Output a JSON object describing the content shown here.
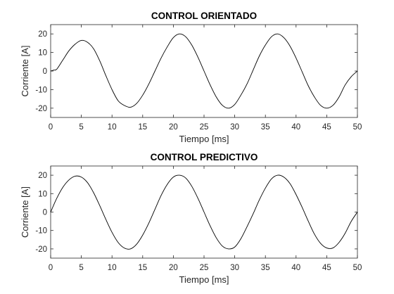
{
  "chart_data": [
    {
      "type": "line",
      "title": "CONTROL ORIENTADO",
      "xlabel": "Tiempo [ms]",
      "ylabel": "Corriente [A]",
      "xlim": [
        0,
        50
      ],
      "ylim": [
        -25,
        25
      ],
      "xticks": [
        0,
        5,
        10,
        15,
        20,
        25,
        30,
        35,
        40,
        45,
        50
      ],
      "yticks": [
        -20,
        -10,
        0,
        10,
        20
      ],
      "grid": false,
      "line_color": "#000000",
      "series": [
        {
          "x": [
            0,
            0.5,
            1,
            2,
            3,
            4,
            5,
            6,
            7,
            8,
            9,
            10,
            11,
            12,
            13,
            14,
            15,
            16,
            17,
            18,
            19,
            20,
            21,
            22,
            23,
            24,
            25,
            26,
            27,
            28,
            29,
            30,
            31,
            32,
            33,
            34,
            35,
            36,
            37,
            38,
            39,
            40,
            41,
            42,
            43,
            44,
            45,
            46,
            47,
            48,
            49,
            50
          ],
          "y": [
            0,
            0.5,
            1,
            6,
            11,
            14.5,
            16.5,
            15.5,
            12,
            5.5,
            -2.5,
            -10,
            -16,
            -18.5,
            -19.5,
            -17.5,
            -13,
            -7,
            0,
            7,
            13,
            18,
            20,
            18.5,
            14,
            7.5,
            0,
            -7.5,
            -14,
            -18.5,
            -20,
            -18,
            -13,
            -7,
            0.5,
            8,
            14,
            18.5,
            20,
            18,
            13.5,
            7,
            -0.5,
            -8,
            -14,
            -18.5,
            -20,
            -18.5,
            -14,
            -7.5,
            -3,
            0
          ]
        }
      ]
    },
    {
      "type": "line",
      "title": "CONTROL PREDICTIVO",
      "xlabel": "Tiempo [ms]",
      "ylabel": "Corriente [A]",
      "xlim": [
        0,
        50
      ],
      "ylim": [
        -25,
        25
      ],
      "xticks": [
        0,
        5,
        10,
        15,
        20,
        25,
        30,
        35,
        40,
        45,
        50
      ],
      "yticks": [
        -20,
        -10,
        0,
        10,
        20
      ],
      "grid": false,
      "line_color": "#000000",
      "series": [
        {
          "x": [
            0,
            1,
            2,
            3,
            4,
            5,
            6,
            7,
            8,
            9,
            10,
            11,
            12,
            13,
            14,
            15,
            16,
            17,
            18,
            19,
            20,
            21,
            22,
            23,
            24,
            25,
            26,
            27,
            28,
            29,
            30,
            31,
            32,
            33,
            34,
            35,
            36,
            37,
            38,
            39,
            40,
            41,
            42,
            43,
            44,
            45,
            46,
            47,
            48,
            49,
            50
          ],
          "y": [
            0,
            7.5,
            13.5,
            17.5,
            19.5,
            19,
            16,
            10.5,
            3.5,
            -4,
            -11,
            -16.5,
            -19.5,
            -20,
            -17.5,
            -12.5,
            -6,
            1.5,
            9,
            15,
            19,
            20,
            18.5,
            14,
            7.5,
            0,
            -7.5,
            -14,
            -18.5,
            -20,
            -19,
            -14.5,
            -8,
            -1,
            6.5,
            13,
            18,
            20,
            19,
            15.5,
            9.5,
            2.5,
            -5,
            -12,
            -17,
            -19.5,
            -19.5,
            -16.5,
            -11.5,
            -5,
            0
          ]
        }
      ]
    }
  ]
}
